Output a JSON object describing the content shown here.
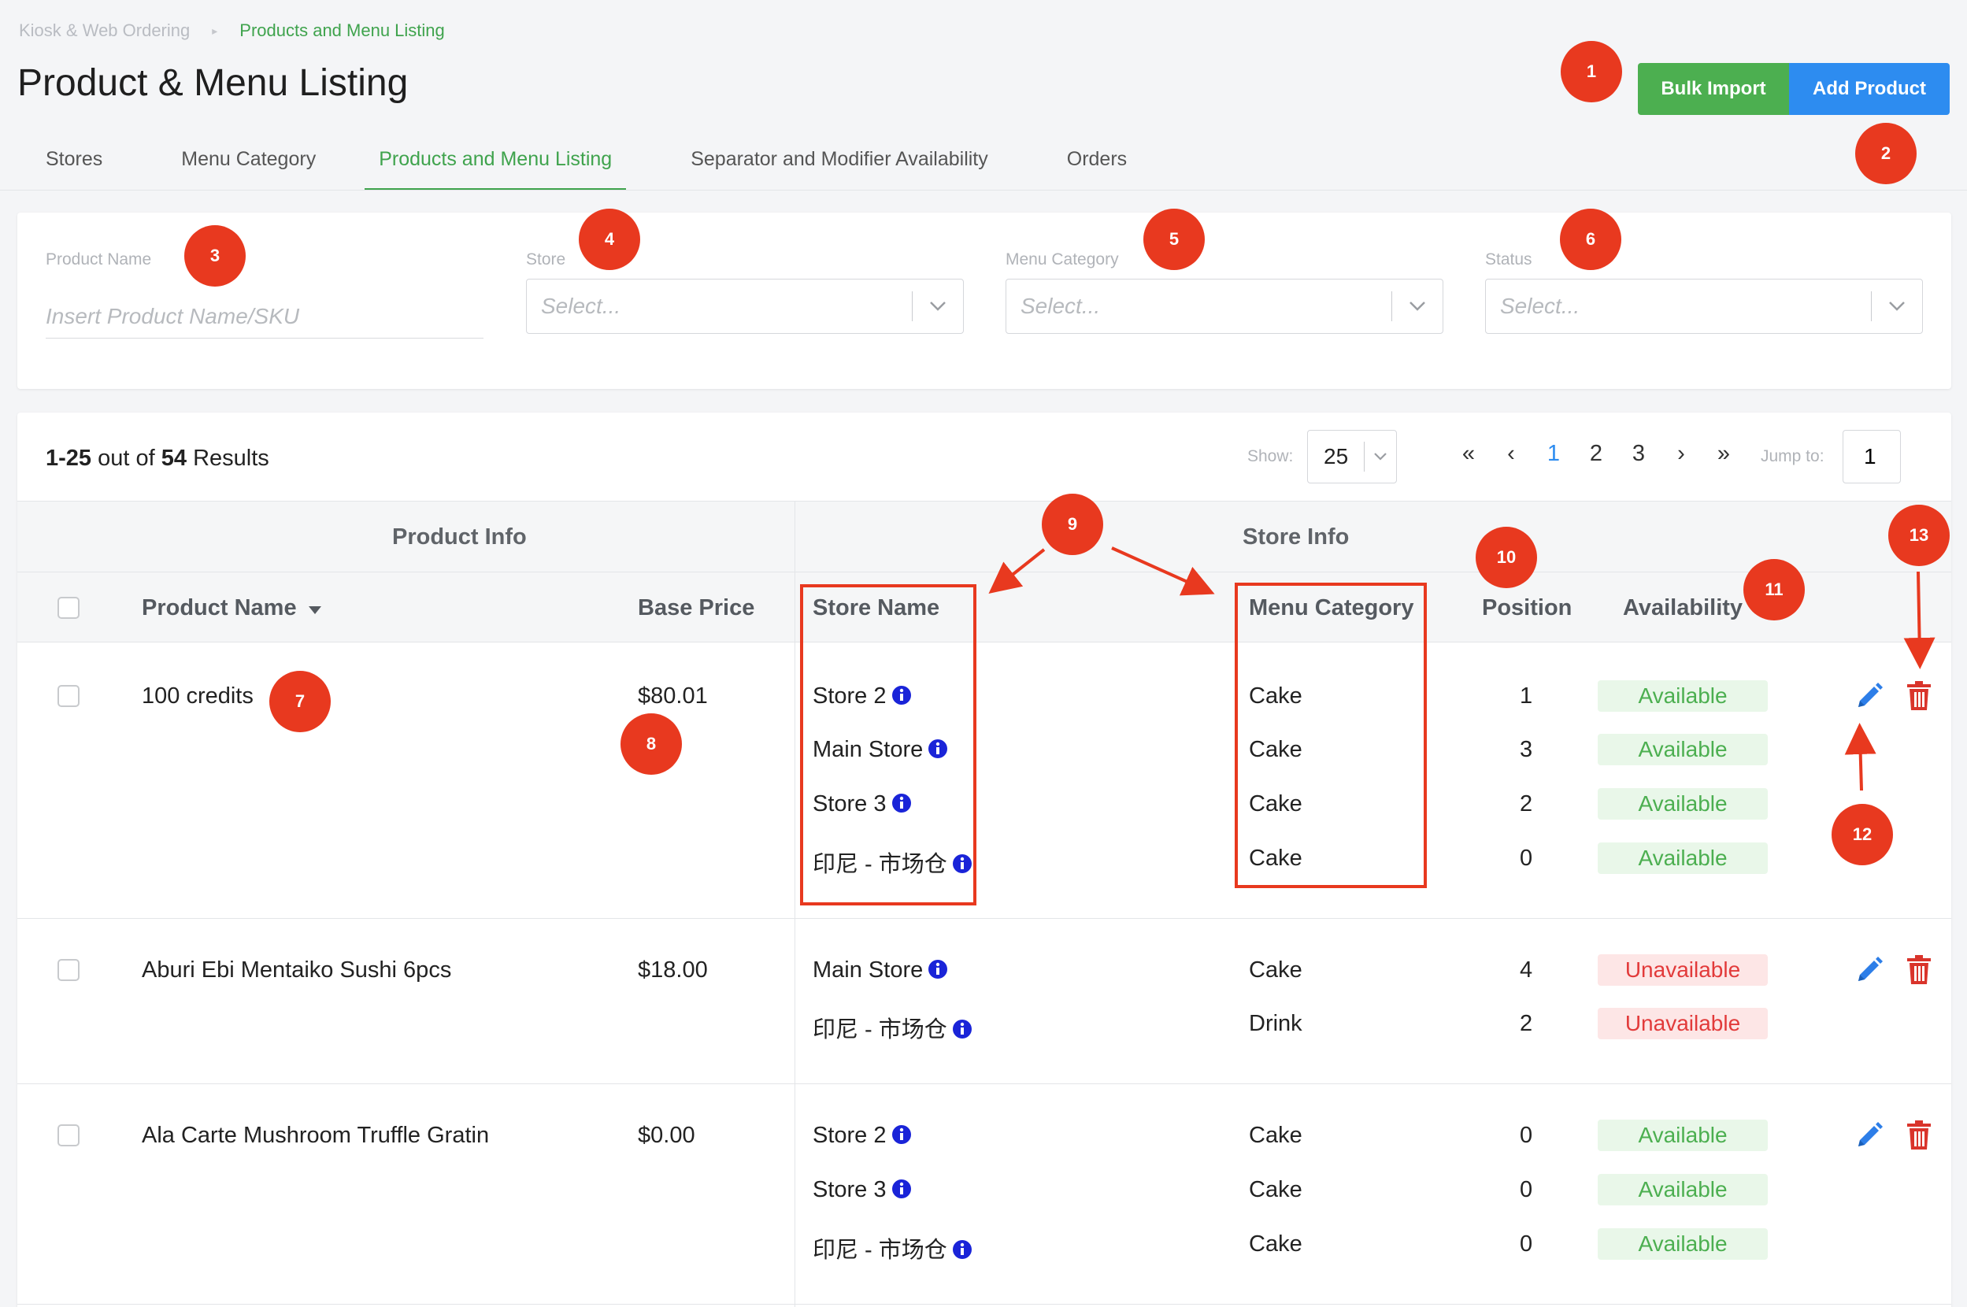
{
  "breadcrumb": {
    "parent": "Kiosk & Web Ordering",
    "current": "Products and Menu Listing"
  },
  "page_title": "Product & Menu Listing",
  "actions": {
    "bulk_import": "Bulk Import",
    "add_product": "Add Product"
  },
  "tabs": [
    {
      "label": "Stores"
    },
    {
      "label": "Menu Category"
    },
    {
      "label": "Products and Menu Listing",
      "active": true
    },
    {
      "label": "Separator and Modifier Availability"
    },
    {
      "label": "Orders"
    }
  ],
  "filters": {
    "product_name": {
      "label": "Product Name",
      "placeholder": "Insert Product Name/SKU"
    },
    "store": {
      "label": "Store",
      "placeholder": "Select..."
    },
    "menu_category": {
      "label": "Menu Category",
      "placeholder": "Select..."
    },
    "status": {
      "label": "Status",
      "placeholder": "Select..."
    }
  },
  "results": {
    "range": "1-25",
    "out_of": "out of",
    "total": "54",
    "suffix": "Results"
  },
  "pagination": {
    "show_label": "Show:",
    "page_size": "25",
    "first": "«",
    "prev": "‹",
    "pages": [
      "1",
      "2",
      "3"
    ],
    "next": "›",
    "last": "»",
    "jump_label": "Jump to:",
    "jump_value": "1"
  },
  "table": {
    "group_product": "Product Info",
    "group_store": "Store Info",
    "col_product_name": "Product Name",
    "col_base_price": "Base Price",
    "col_store_name": "Store Name",
    "col_menu_category": "Menu Category",
    "col_position": "Position",
    "col_availability": "Availability",
    "rows": [
      {
        "product_name": "100 credits",
        "base_price": "$80.01",
        "stores": [
          {
            "store": "Store 2",
            "category": "Cake",
            "position": "1",
            "status": "Available"
          },
          {
            "store": "Main Store",
            "category": "Cake",
            "position": "3",
            "status": "Available"
          },
          {
            "store": "Store 3",
            "category": "Cake",
            "position": "2",
            "status": "Available"
          },
          {
            "store": "印尼 - 市场仓",
            "category": "Cake",
            "position": "0",
            "status": "Available"
          }
        ]
      },
      {
        "product_name": "Aburi Ebi Mentaiko Sushi 6pcs",
        "base_price": "$18.00",
        "stores": [
          {
            "store": "Main Store",
            "category": "Cake",
            "position": "4",
            "status": "Unavailable"
          },
          {
            "store": "印尼 - 市场仓",
            "category": "Drink",
            "position": "2",
            "status": "Unavailable"
          }
        ]
      },
      {
        "product_name": "Ala Carte Mushroom Truffle Gratin",
        "base_price": "$0.00",
        "stores": [
          {
            "store": "Store 2",
            "category": "Cake",
            "position": "0",
            "status": "Available"
          },
          {
            "store": "Store 3",
            "category": "Cake",
            "position": "0",
            "status": "Available"
          },
          {
            "store": "印尼 - 市场仓",
            "category": "Cake",
            "position": "0",
            "status": "Available"
          }
        ]
      }
    ]
  },
  "annotations": [
    "1",
    "2",
    "3",
    "4",
    "5",
    "6",
    "7",
    "8",
    "9",
    "10",
    "11",
    "12",
    "13"
  ],
  "colors": {
    "accent_green": "#4caf50",
    "accent_blue": "#2d8cf0",
    "danger": "#e23a3a",
    "annotation": "#e8391f"
  }
}
